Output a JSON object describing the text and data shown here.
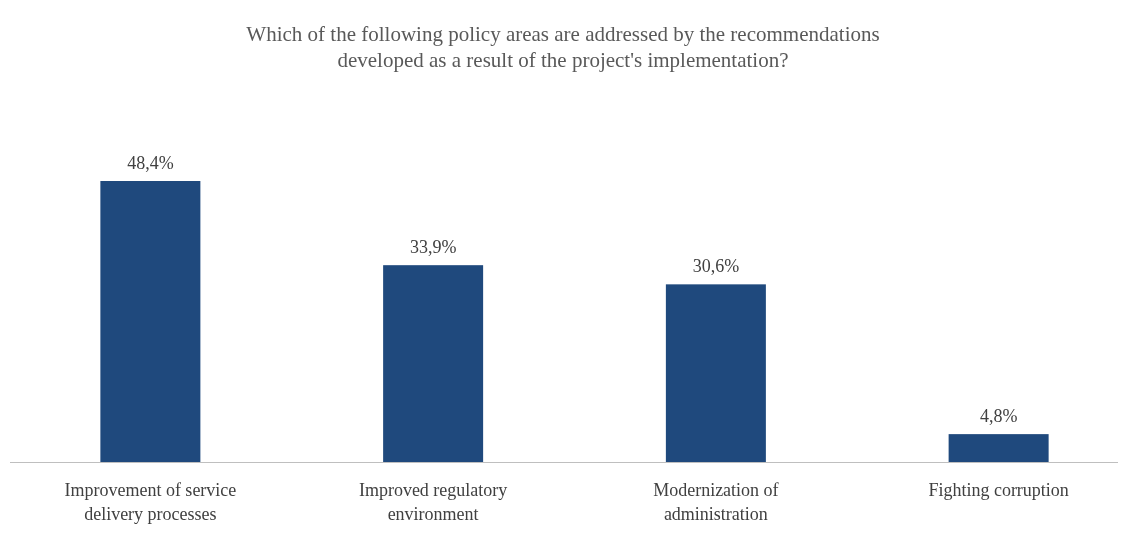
{
  "chart_data": {
    "type": "bar",
    "title": "Which of the following policy areas are addressed by the recommendations developed as a result of the project's implementation?",
    "categories": [
      "Improvement of service delivery processes",
      "Improved regulatory environment",
      "Modernization of administration",
      "Fighting corruption"
    ],
    "values": [
      48.4,
      33.9,
      30.6,
      4.8
    ],
    "value_labels": [
      "48,4%",
      "33,9%",
      "30,6%",
      "4,8%"
    ],
    "color": "#1f497d"
  }
}
